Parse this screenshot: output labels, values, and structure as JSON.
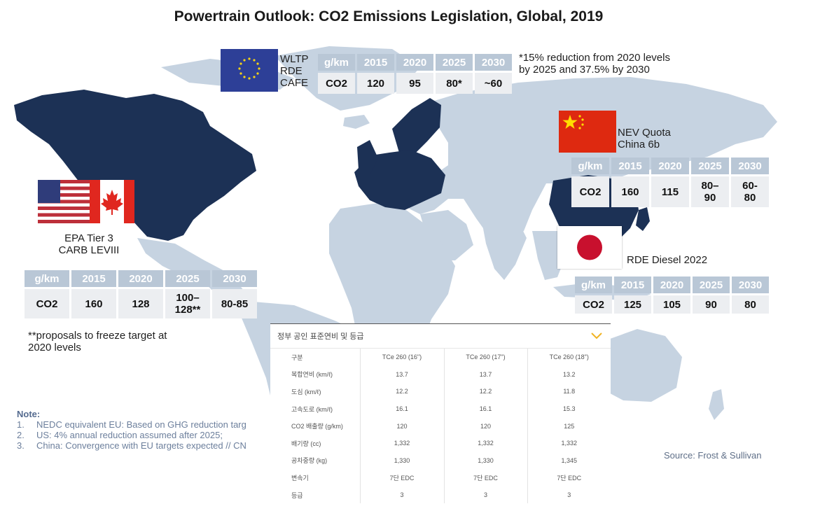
{
  "title": "Powertrain Outlook: CO2 Emissions Legislation, Global, 2019",
  "colors": {
    "highlight": "#1c3155",
    "land": "#c6d3e1",
    "header_cell": "#b9c7d6",
    "body_cell": "#eceef1",
    "note": "#556b8f"
  },
  "eu": {
    "labels": [
      "WLTP",
      "RDE",
      "CAFE"
    ],
    "header": [
      "g/km",
      "2015",
      "2020",
      "2025",
      "2030"
    ],
    "row_label": "CO2",
    "values": [
      "120",
      "95",
      "80*",
      "~60"
    ],
    "note": [
      "*15% reduction from 2020 levels",
      "by 2025 and 37.5% by 2030"
    ]
  },
  "china": {
    "labels": [
      "NEV Quota",
      "China 6b"
    ],
    "header": [
      "g/km",
      "2015",
      "2020",
      "2025",
      "2030"
    ],
    "row_label": "CO2",
    "values": [
      "160",
      "115",
      "80–90",
      "60-80"
    ],
    "values_lines": [
      [
        "160"
      ],
      [
        "115"
      ],
      [
        "80–",
        "90"
      ],
      [
        "60-",
        "80"
      ]
    ]
  },
  "north_america": {
    "labels": [
      "EPA Tier 3",
      "CARB LEVIII"
    ],
    "header": [
      "g/km",
      "2015",
      "2020",
      "2025",
      "2030"
    ],
    "row_label": "CO2",
    "values": [
      "160",
      "128",
      "100–128**",
      "80-85"
    ],
    "values_lines": [
      [
        "160"
      ],
      [
        "128"
      ],
      [
        "100–",
        "128**"
      ],
      [
        "80-85"
      ]
    ],
    "note": [
      "**proposals to freeze target at",
      "2020 levels"
    ]
  },
  "japan": {
    "label": "RDE Diesel 2022",
    "header": [
      "g/km",
      "2015",
      "2020",
      "2025",
      "2030"
    ],
    "row_label": "CO2",
    "values": [
      "125",
      "105",
      "90",
      "80"
    ]
  },
  "notes": {
    "heading": "Note:",
    "items": [
      {
        "num": "1.",
        "text": "NEDC equivalent EU: Based on GHG reduction targ"
      },
      {
        "num": "2.",
        "text": "US: 4% annual reduction assumed after 2025;"
      },
      {
        "num": "3.",
        "text": "China: Convergence with EU targets expected // CN"
      }
    ]
  },
  "source": "Source: Frost & Sullivan",
  "korean_panel": {
    "title": "정부 공인 표준연비 및 등급",
    "toggle_icon": "chevron-down-icon",
    "columns": [
      "구분",
      "TCe 260 (16\")",
      "TCe 260 (17\")",
      "TCe 260 (18\")"
    ],
    "rows": [
      [
        "복합연비 (km/ℓ)",
        "13.7",
        "13.7",
        "13.2"
      ],
      [
        "도심 (km/ℓ)",
        "12.2",
        "12.2",
        "11.8"
      ],
      [
        "고속도로 (km/ℓ)",
        "16.1",
        "16.1",
        "15.3"
      ],
      [
        "CO2 배출량 (g/km)",
        "120",
        "120",
        "125"
      ],
      [
        "배기량 (cc)",
        "1,332",
        "1,332",
        "1,332"
      ],
      [
        "공차중량 (kg)",
        "1,330",
        "1,330",
        "1,345"
      ],
      [
        "변속기",
        "7단 EDC",
        "7단 EDC",
        "7단 EDC"
      ],
      [
        "등급",
        "3",
        "3",
        "3"
      ]
    ]
  }
}
